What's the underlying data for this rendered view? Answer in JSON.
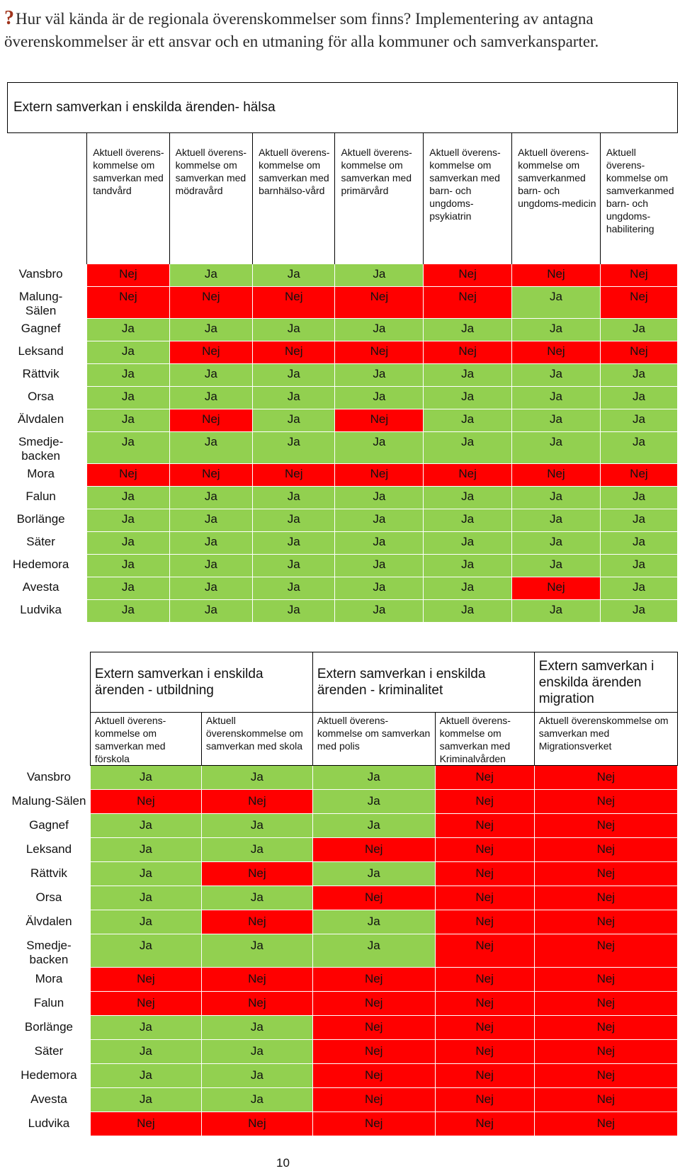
{
  "intro": {
    "glyph": "?",
    "text": "Hur väl kända är de regionala överenskommelser som finns? Implementering av antagna överenskommelser är ett ansvar och en utmaning för alla kommuner och samverkansparter."
  },
  "table1": {
    "title": "Extern samverkan i enskilda ärenden- hälsa",
    "headers": [
      "Aktuell överens-kommelse om samverkan med tandvård",
      "Aktuell överens-kommelse om samverkan med mödravård",
      "Aktuell överens-kommelse om samverkan med barnhälso-vård",
      "Aktuell överens-kommelse om samverkan med primärvård",
      "Aktuell överens-kommelse om samverkan med barn- och ungdoms-psykiatrin",
      "Aktuell överens-kommelse om samverkanmed barn- och ungdoms-medicin",
      "Aktuell överens-kommelse om samverkanmed barn- och ungdoms-habilitering"
    ],
    "rows": [
      {
        "name": "Vansbro",
        "values": [
          "Nej",
          "Ja",
          "Ja",
          "Ja",
          "Nej",
          "Nej",
          "Nej"
        ]
      },
      {
        "name": "Malung-Sälen",
        "values": [
          "Nej",
          "Nej",
          "Nej",
          "Nej",
          "Nej",
          "Ja",
          "Nej"
        ]
      },
      {
        "name": "Gagnef",
        "values": [
          "Ja",
          "Ja",
          "Ja",
          "Ja",
          "Ja",
          "Ja",
          "Ja"
        ]
      },
      {
        "name": "Leksand",
        "values": [
          "Ja",
          "Nej",
          "Nej",
          "Nej",
          "Nej",
          "Nej",
          "Nej"
        ]
      },
      {
        "name": "Rättvik",
        "values": [
          "Ja",
          "Ja",
          "Ja",
          "Ja",
          "Ja",
          "Ja",
          "Ja"
        ]
      },
      {
        "name": "Orsa",
        "values": [
          "Ja",
          "Ja",
          "Ja",
          "Ja",
          "Ja",
          "Ja",
          "Ja"
        ]
      },
      {
        "name": "Älvdalen",
        "values": [
          "Ja",
          "Nej",
          "Ja",
          "Nej",
          "Ja",
          "Ja",
          "Ja"
        ]
      },
      {
        "name": "Smedje-backen",
        "values": [
          "Ja",
          "Ja",
          "Ja",
          "Ja",
          "Ja",
          "Ja",
          "Ja"
        ]
      },
      {
        "name": "Mora",
        "values": [
          "Nej",
          "Nej",
          "Nej",
          "Nej",
          "Nej",
          "Nej",
          "Nej"
        ]
      },
      {
        "name": "Falun",
        "values": [
          "Ja",
          "Ja",
          "Ja",
          "Ja",
          "Ja",
          "Ja",
          "Ja"
        ]
      },
      {
        "name": "Borlänge",
        "values": [
          "Ja",
          "Ja",
          "Ja",
          "Ja",
          "Ja",
          "Ja",
          "Ja"
        ]
      },
      {
        "name": "Säter",
        "values": [
          "Ja",
          "Ja",
          "Ja",
          "Ja",
          "Ja",
          "Ja",
          "Ja"
        ]
      },
      {
        "name": "Hedemora",
        "values": [
          "Ja",
          "Ja",
          "Ja",
          "Ja",
          "Ja",
          "Ja",
          "Ja"
        ]
      },
      {
        "name": "Avesta",
        "values": [
          "Ja",
          "Ja",
          "Ja",
          "Ja",
          "Ja",
          "Nej",
          "Ja"
        ]
      },
      {
        "name": "Ludvika",
        "values": [
          "Ja",
          "Ja",
          "Ja",
          "Ja",
          "Ja",
          "Ja",
          "Ja"
        ]
      }
    ]
  },
  "table2": {
    "groups": [
      {
        "title": "Extern samverkan i enskilda ärenden - utbildning"
      },
      {
        "title": "Extern samverkan i enskilda ärenden - kriminalitet"
      },
      {
        "title": "Extern samverkan i enskilda ärenden migration"
      }
    ],
    "headers": [
      "Aktuell överens-kommelse om samverkan med förskola",
      "Aktuell överenskommelse om samverkan med skola",
      "Aktuell överens-kommelse om samverkan med polis",
      "Aktuell överens-kommelse om samverkan med Kriminalvården",
      "Aktuell överenskommelse om samverkan med Migrationsverket"
    ],
    "rows": [
      {
        "name": "Vansbro",
        "values": [
          "Ja",
          "Ja",
          "Ja",
          "Nej",
          "Nej"
        ]
      },
      {
        "name": "Malung-Sälen",
        "values": [
          "Nej",
          "Nej",
          "Ja",
          "Nej",
          "Nej"
        ]
      },
      {
        "name": "Gagnef",
        "values": [
          "Ja",
          "Ja",
          "Ja",
          "Nej",
          "Nej"
        ]
      },
      {
        "name": "Leksand",
        "values": [
          "Ja",
          "Ja",
          "Nej",
          "Nej",
          "Nej"
        ]
      },
      {
        "name": "Rättvik",
        "values": [
          "Ja",
          "Nej",
          "Ja",
          "Nej",
          "Nej"
        ]
      },
      {
        "name": "Orsa",
        "values": [
          "Ja",
          "Ja",
          "Nej",
          "Nej",
          "Nej"
        ]
      },
      {
        "name": "Älvdalen",
        "values": [
          "Ja",
          "Nej",
          "Ja",
          "Nej",
          "Nej"
        ]
      },
      {
        "name": "Smedje-backen",
        "values": [
          "Ja",
          "Ja",
          "Ja",
          "Nej",
          "Nej"
        ]
      },
      {
        "name": "Mora",
        "values": [
          "Nej",
          "Nej",
          "Nej",
          "Nej",
          "Nej"
        ]
      },
      {
        "name": "Falun",
        "values": [
          "Nej",
          "Nej",
          "Nej",
          "Nej",
          "Nej"
        ]
      },
      {
        "name": "Borlänge",
        "values": [
          "Ja",
          "Ja",
          "Nej",
          "Nej",
          "Nej"
        ]
      },
      {
        "name": "Säter",
        "values": [
          "Ja",
          "Ja",
          "Nej",
          "Nej",
          "Nej"
        ]
      },
      {
        "name": "Hedemora",
        "values": [
          "Ja",
          "Ja",
          "Nej",
          "Nej",
          "Nej"
        ]
      },
      {
        "name": "Avesta",
        "values": [
          "Ja",
          "Ja",
          "Nej",
          "Nej",
          "Nej"
        ]
      },
      {
        "name": "Ludvika",
        "values": [
          "Nej",
          "Nej",
          "Nej",
          "Nej",
          "Nej"
        ]
      }
    ]
  },
  "page_number": "10"
}
